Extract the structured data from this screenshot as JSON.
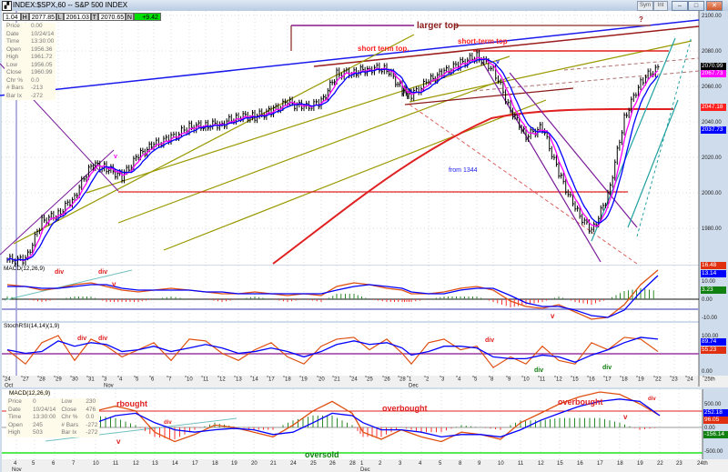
{
  "window": {
    "title": "INDEX:$SPX,60 -- S&P 500 INDEX",
    "sym_button": "Sym",
    "int_button": "Int",
    "min": "–",
    "max": "□",
    "close": "✕"
  },
  "quote_strip": {
    "ratio": "1.04",
    "h_label": "H",
    "high": "2077.85",
    "l_label": "L",
    "low": "2061.03",
    "t_label": "T",
    "last": "2070.65",
    "n_label": "N",
    "net": "+9.42",
    "net_color": "#00e000"
  },
  "info_main": [
    {
      "k": "Price",
      "v": "0.00"
    },
    {
      "k": "Date",
      "v": "10/24/14"
    },
    {
      "k": "Time",
      "v": "13:30:00"
    },
    {
      "k": "Open",
      "v": "1956.36"
    },
    {
      "k": "High",
      "v": "1961.72"
    },
    {
      "k": "Low",
      "v": "1956.05"
    },
    {
      "k": "Close",
      "v": "1960.99"
    },
    {
      "k": "Chr %",
      "v": "0.0"
    },
    {
      "k": "# Bars",
      "v": "-213"
    },
    {
      "k": "Bar Ix",
      "v": "-272"
    }
  ],
  "info_bottom": [
    {
      "k": "Price",
      "v": "0"
    },
    {
      "k": "Date",
      "v": "10/24/14"
    },
    {
      "k": "Time",
      "v": "13:30:00"
    },
    {
      "k": "Open",
      "v": "245"
    },
    {
      "k": "High",
      "v": "503"
    },
    {
      "k": "Low",
      "v": "230"
    },
    {
      "k": "Close",
      "v": "476"
    },
    {
      "k": "Chr %",
      "v": "0.0"
    },
    {
      "k": "# Bars",
      "v": "-272"
    },
    {
      "k": "Bar Ix",
      "v": "-272"
    }
  ],
  "annotations": {
    "larger_top": "larger top",
    "question": "?",
    "short_term_top_1": "short term top.",
    "short_term_top_2": "short-term top",
    "from_1344": "from 1344",
    "v": "v",
    "macd_div_1": "div",
    "macd_div_2": "div",
    "macd_v": "v",
    "stoch_div": "div",
    "stoch_div_green": "div",
    "bottom_rbought": "rbought",
    "bottom_overbought_1": "overbought",
    "bottom_overbought_2": "overbought",
    "bottom_div_1": "div",
    "bottom_div_2": "div",
    "bottom_oversold": "oversold"
  },
  "chart_data": [
    {
      "type": "line",
      "title": "INDEX:$SPX,60 -- S&P 500 INDEX",
      "interval": "60 min",
      "yticks": [
        "2100.00",
        "2080.00",
        "2060.00",
        "2040.00",
        "2020.00",
        "2000.00",
        "1980.00"
      ],
      "ylim": [
        1965,
        2100
      ],
      "x_ticks": [
        "24",
        "27",
        "28",
        "29",
        "30",
        "31",
        "3",
        "4",
        "5",
        "6",
        "7",
        "10",
        "11",
        "12",
        "13",
        "14",
        "17",
        "18",
        "19",
        "20",
        "21",
        "24",
        "25",
        "26",
        "28",
        "1",
        "2",
        "3",
        "4",
        "5",
        "8",
        "9",
        "10",
        "11",
        "12",
        "15",
        "16",
        "17",
        "18",
        "19",
        "22",
        "23",
        "24",
        "25th"
      ],
      "months": {
        "oct": "Oct",
        "nov": "Nov",
        "dec": "Dec"
      },
      "closes": [
        1962,
        1962,
        1984,
        1988,
        1998,
        2016,
        2014,
        2009,
        2021,
        2027,
        2031,
        2037,
        2038,
        2039,
        2043,
        2043,
        2046,
        2051,
        2048,
        2051,
        2067,
        2068,
        2070,
        2070,
        2058,
        2055,
        2063,
        2068,
        2073,
        2077,
        2070,
        2047,
        2032,
        2037,
        2011,
        1991,
        1978,
        1998,
        2042,
        2063,
        2071
      ],
      "value_badges": [
        {
          "value": "2070.99",
          "color": "#000000"
        },
        {
          "value": "2067.73",
          "color": "#ff00ff"
        },
        {
          "value": "2047.18",
          "color": "#ff2020"
        },
        {
          "value": "2037.73",
          "color": "#0000ff"
        }
      ],
      "colors": {
        "price": "#000000",
        "ma_fast": "#ff00ff",
        "ma_slow": "#0000ff",
        "trend_blue": "#1a1aee",
        "trend_red": "#9b1c1c",
        "channel": "#999900"
      }
    },
    {
      "type": "line",
      "title": "MACD(12,26,9)",
      "yticks": [
        "10.00",
        "0.00",
        "-10.00"
      ],
      "macd": [
        8,
        7,
        5,
        6,
        8,
        9,
        7,
        5,
        4,
        5,
        6,
        5,
        4,
        3,
        3,
        4,
        3,
        2,
        3,
        2,
        7,
        9,
        8,
        6,
        5,
        3,
        3,
        4,
        6,
        7,
        5,
        -1,
        -4,
        -5,
        -3,
        -7,
        -11,
        -10,
        -3,
        8,
        16
      ],
      "signal": [
        7,
        7,
        6,
        6,
        7,
        8,
        8,
        6,
        5,
        5,
        5,
        5,
        4,
        4,
        3,
        3,
        3,
        3,
        3,
        3,
        5,
        7,
        8,
        7,
        6,
        4,
        3,
        3,
        5,
        6,
        6,
        2,
        -2,
        -4,
        -4,
        -6,
        -9,
        -10,
        -6,
        4,
        13
      ],
      "value_badges": [
        {
          "value": "16.48",
          "color": "#e03010"
        },
        {
          "value": "13.14",
          "color": "#0000ff"
        },
        {
          "value": "3.23",
          "color": "#108010"
        }
      ]
    },
    {
      "type": "line",
      "title": "StochRSI(14,14)(1,9)",
      "yticks": [
        "100.00",
        "0.00"
      ],
      "k": [
        60,
        20,
        80,
        100,
        30,
        90,
        70,
        40,
        60,
        80,
        30,
        90,
        85,
        50,
        30,
        60,
        80,
        40,
        20,
        70,
        90,
        95,
        60,
        90,
        50,
        20,
        80,
        90,
        60,
        70,
        10,
        40,
        20,
        70,
        30,
        20,
        80,
        60,
        95,
        90,
        55
      ],
      "d": [
        60,
        50,
        55,
        85,
        70,
        80,
        75,
        55,
        60,
        70,
        55,
        65,
        75,
        65,
        50,
        55,
        65,
        55,
        40,
        55,
        75,
        85,
        75,
        80,
        65,
        45,
        55,
        70,
        70,
        65,
        40,
        35,
        35,
        45,
        40,
        25,
        45,
        60,
        80,
        95,
        90
      ],
      "value_badges": [
        {
          "value": "89.74",
          "color": "#0000ff"
        },
        {
          "value": "55.23",
          "color": "#e03010"
        }
      ]
    },
    {
      "type": "line",
      "title": "MACD(12,26,9)",
      "yticks": [
        "500.00",
        "0.00",
        "-500.00"
      ],
      "x_ticks": [
        "4",
        "5",
        "6",
        "7",
        "10",
        "11",
        "12",
        "13",
        "14",
        "17",
        "18",
        "19",
        "20",
        "21",
        "24",
        "25",
        "26",
        "28",
        "1",
        "2",
        "3",
        "4",
        "5",
        "8",
        "9",
        "10",
        "11",
        "12",
        "15",
        "16",
        "17",
        "18",
        "19",
        "22",
        "23",
        "24th"
      ],
      "months": {
        "nov": "Nov",
        "dec": "Dec"
      },
      "macd": [
        -50,
        -150,
        -200,
        50,
        350,
        450,
        350,
        -100,
        -300,
        -150,
        50,
        0,
        -100,
        -200,
        50,
        350,
        550,
        300,
        -100,
        -250,
        -50,
        -200,
        -300,
        -100,
        -150,
        -250,
        100,
        300,
        500,
        650,
        750,
        700,
        500,
        250
      ],
      "signal": [
        -50,
        -100,
        -150,
        -100,
        100,
        250,
        300,
        100,
        -50,
        -100,
        -50,
        -20,
        -50,
        -150,
        -100,
        100,
        300,
        250,
        100,
        -50,
        -50,
        -100,
        -200,
        -150,
        -150,
        -200,
        -50,
        150,
        300,
        450,
        550,
        600,
        550,
        250
      ],
      "value_badges": [
        {
          "value": "252.18",
          "color": "#0000ff"
        },
        {
          "value": "96.05",
          "color": "#e03010"
        },
        {
          "value": "-156.14",
          "color": "#108010"
        }
      ]
    }
  ]
}
